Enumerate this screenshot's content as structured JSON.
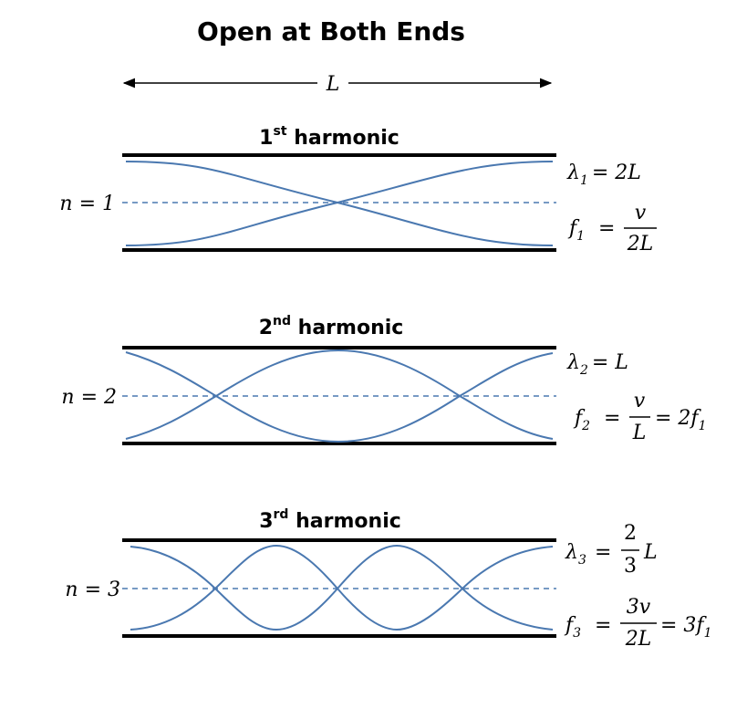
{
  "title": "Open at Both Ends",
  "length_label": "L",
  "harmonics": [
    {
      "ordinal": "1",
      "suffix": "st",
      "word": "harmonic",
      "n_label": "n = 1",
      "n": 1,
      "lambda": {
        "symbol": "λ",
        "sub": "1",
        "rhs": "= 2L"
      },
      "freq": {
        "symbol": "f",
        "sub": "1",
        "eq": "=",
        "num": "v",
        "den": "2L",
        "tail": ""
      }
    },
    {
      "ordinal": "2",
      "suffix": "nd",
      "word": "harmonic",
      "n_label": "n = 2",
      "n": 2,
      "lambda": {
        "symbol": "λ",
        "sub": "2",
        "rhs": "= L"
      },
      "freq": {
        "symbol": "f",
        "sub": "2",
        "eq": "=",
        "num": "v",
        "den": "L",
        "tail": "= 2f",
        "tail_sub": "1"
      }
    },
    {
      "ordinal": "3",
      "suffix": "rd",
      "word": "harmonic",
      "n_label": "n = 3",
      "n": 3,
      "lambda": {
        "symbol": "λ",
        "sub": "3",
        "eq": "=",
        "num": "2",
        "den": "3",
        "tail": "L"
      },
      "freq": {
        "symbol": "f",
        "sub": "3",
        "eq": "=",
        "num": "3v",
        "den": "2L",
        "tail": "= 3f",
        "tail_sub": "1"
      }
    }
  ],
  "colors": {
    "wave": "#4a78b0",
    "wall": "#000000"
  }
}
